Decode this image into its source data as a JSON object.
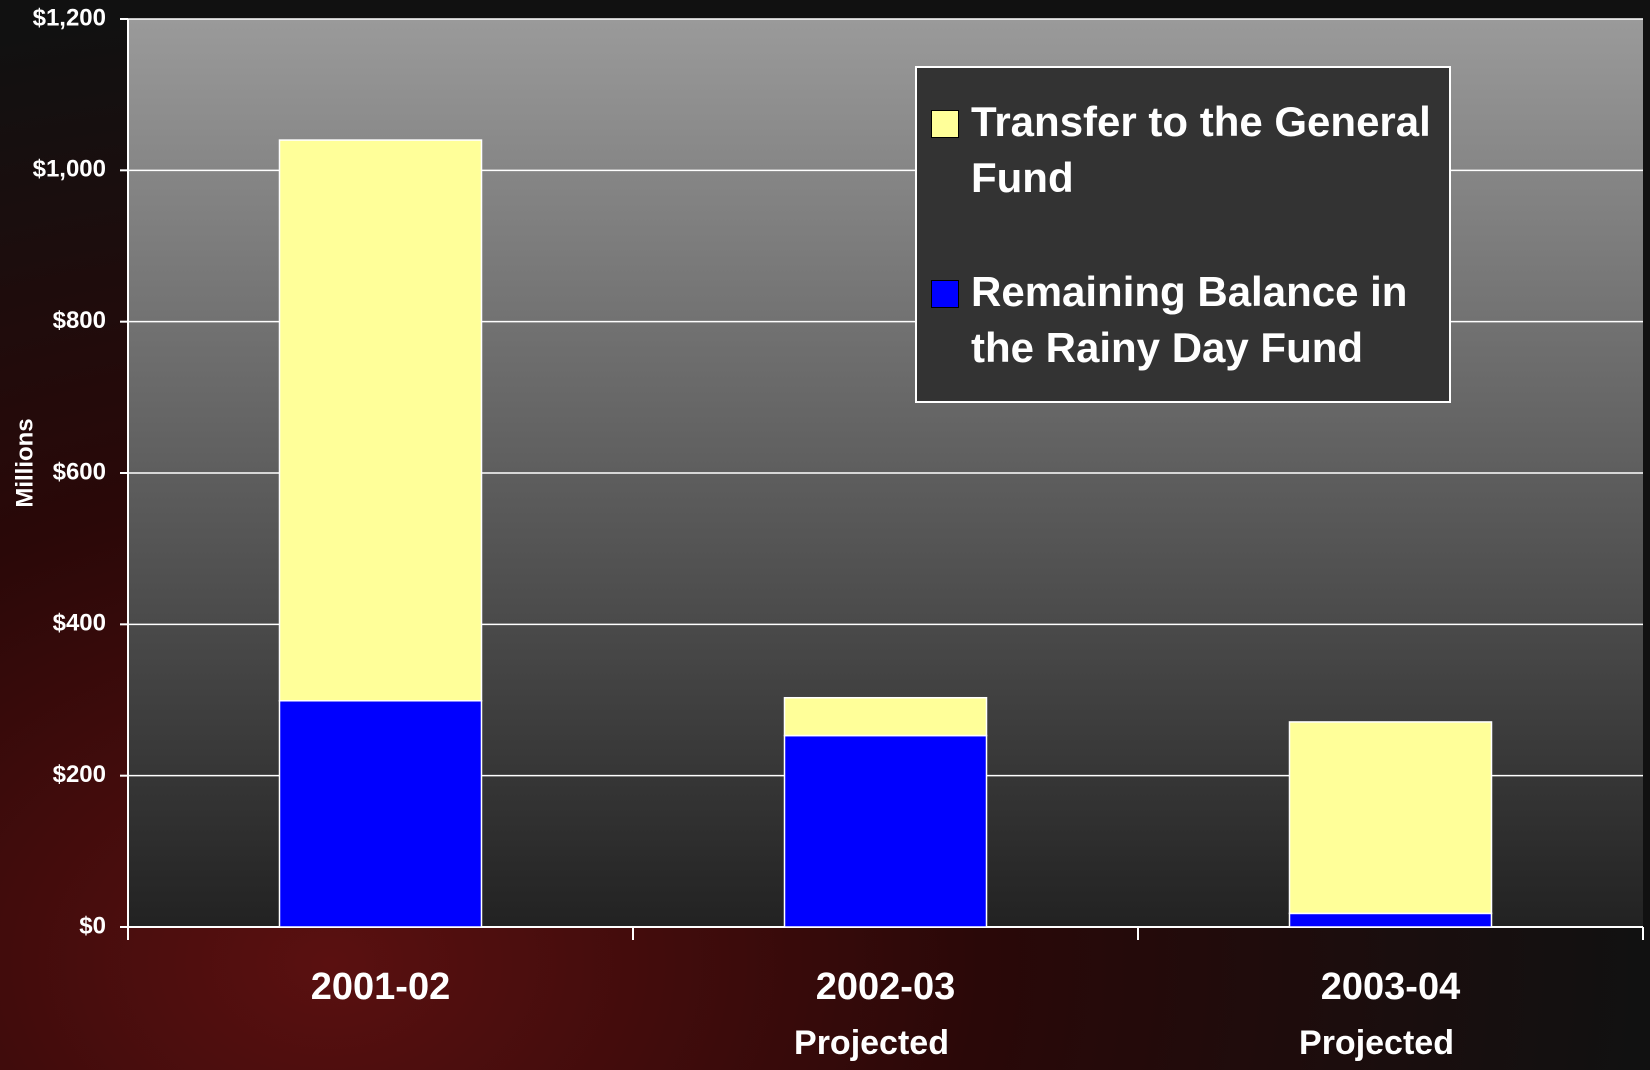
{
  "chart_data": {
    "type": "stacked_bar",
    "y_label": "Millions",
    "categories": [
      "2001-02",
      "2002-03",
      "2003-04"
    ],
    "category_notes": [
      null,
      "Projected",
      "Projected"
    ],
    "series": [
      {
        "name": "Remaining Balance in the Rainy Day Fund",
        "color": "#0000ff",
        "values": [
          299,
          253,
          18
        ]
      },
      {
        "name": "Transfer to the General Fund",
        "color": "#ffff99",
        "values": [
          741,
          50,
          253
        ]
      }
    ],
    "ylim": [
      0,
      1200
    ],
    "yticks": [
      {
        "value": 0,
        "label": "$0"
      },
      {
        "value": 200,
        "label": "$200"
      },
      {
        "value": 400,
        "label": "$400"
      },
      {
        "value": 600,
        "label": "$600"
      },
      {
        "value": 800,
        "label": "$800"
      },
      {
        "value": 1000,
        "label": "$1,000"
      },
      {
        "value": 1200,
        "label": "$1,200"
      }
    ],
    "grid": true
  }
}
